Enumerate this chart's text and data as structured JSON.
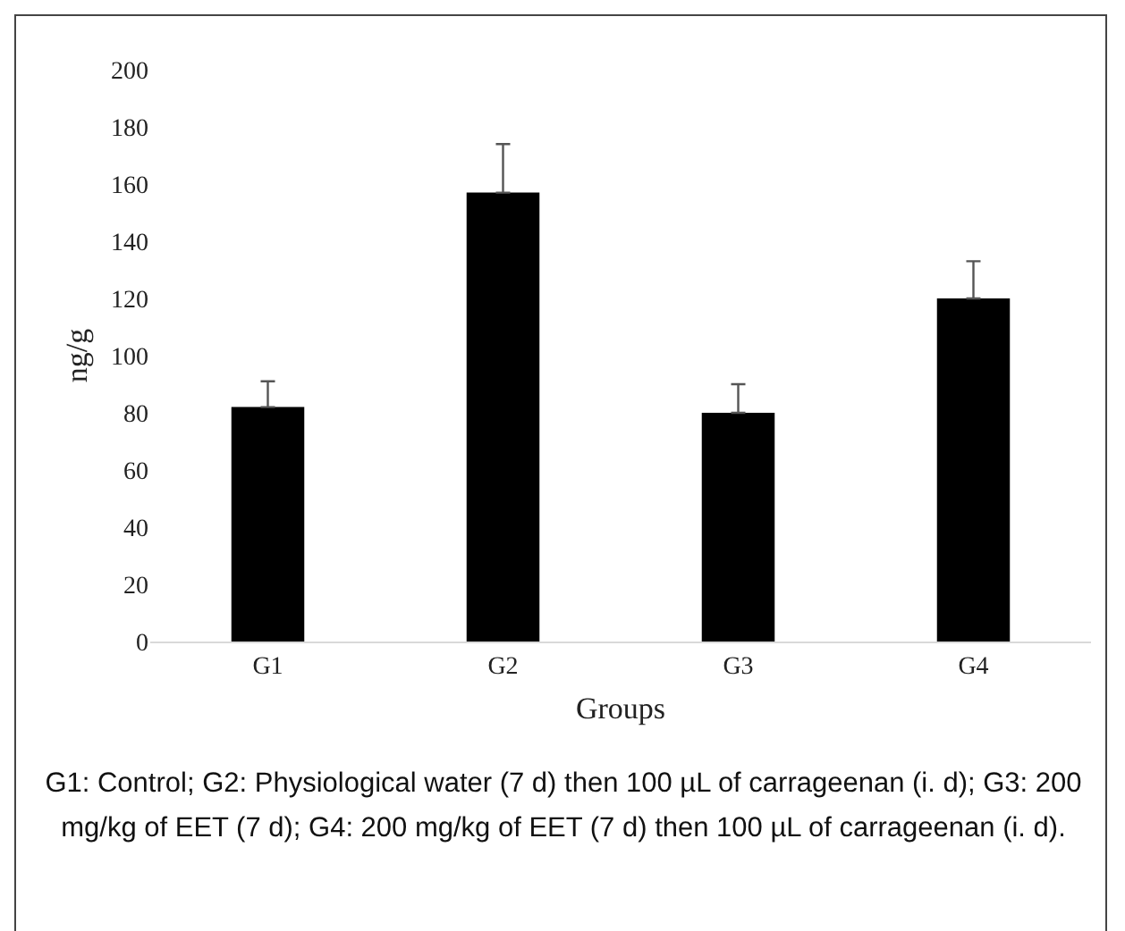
{
  "chart_data": {
    "type": "bar",
    "xlabel": "Groups",
    "ylabel": "ng/g",
    "categories": [
      "G1",
      "G2",
      "G3",
      "G4"
    ],
    "values": [
      82,
      157,
      80,
      120
    ],
    "errors": [
      [
        82,
        91
      ],
      [
        157,
        174
      ],
      [
        80,
        90
      ],
      [
        120,
        133
      ]
    ],
    "color": "#000000",
    "ylim": [
      0,
      200
    ],
    "yticks": [
      0,
      20,
      40,
      60,
      80,
      100,
      120,
      140,
      160,
      180,
      200
    ],
    "grid": false,
    "annotations": [
      "G1: Control; G2: Physiological water (7 d) then 100 µL of carrageenan (i. d); G3: 200 mg/kg of EET (7 d); G4: 200 mg/kg of EET (7 d) then 100 µL of carrageenan (i. d)."
    ]
  }
}
